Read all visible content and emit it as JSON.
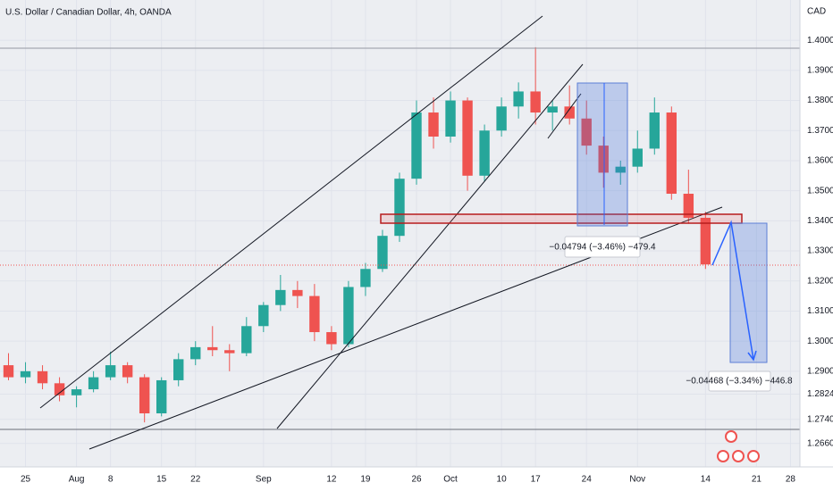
{
  "chart_data": {
    "type": "candlestick",
    "title": "U.S. Dollar / Canadian Dollar, 4h, OANDA",
    "currency": "CAD",
    "up_color": "#26a69a",
    "down_color": "#ef5350",
    "grid": true,
    "categories": [
      null,
      "25",
      null,
      null,
      "Aug",
      null,
      "8",
      null,
      null,
      "15",
      null,
      "22",
      null,
      null,
      null,
      "Sep",
      null,
      null,
      null,
      "12",
      null,
      "19",
      null,
      null,
      "26",
      null,
      "Oct",
      null,
      null,
      "10",
      null,
      "17",
      null,
      null,
      "24",
      null,
      null,
      "Nov",
      null,
      null,
      null,
      "14",
      null,
      null,
      "21",
      null,
      "28",
      null,
      null
    ],
    "open": [
      1.292,
      1.288,
      1.29,
      1.286,
      1.282,
      1.284,
      1.288,
      1.292,
      1.288,
      1.276,
      1.287,
      1.294,
      1.298,
      1.297,
      1.296,
      1.305,
      1.312,
      1.317,
      1.315,
      1.303,
      1.299,
      1.318,
      1.324,
      1.335,
      1.354,
      1.376,
      1.368,
      1.38,
      1.355,
      1.37,
      1.378,
      1.383,
      1.376,
      1.378,
      1.374,
      1.365,
      1.356,
      1.358,
      1.364,
      1.376,
      1.349,
      1.341,
      null,
      null,
      null,
      null,
      null,
      null,
      null
    ],
    "high": [
      1.296,
      1.293,
      1.292,
      1.288,
      1.285,
      1.29,
      1.2965,
      1.293,
      1.289,
      1.288,
      1.296,
      1.3,
      1.305,
      1.299,
      1.308,
      1.313,
      1.322,
      1.32,
      1.319,
      1.305,
      1.32,
      1.326,
      1.337,
      1.356,
      1.38,
      1.381,
      1.383,
      1.381,
      1.372,
      1.381,
      1.386,
      1.3977,
      1.38,
      1.385,
      1.38,
      1.368,
      1.36,
      1.37,
      1.381,
      1.378,
      1.357,
      1.343,
      null,
      null,
      null,
      null,
      null,
      null,
      null
    ],
    "low": [
      1.287,
      1.286,
      1.284,
      1.28,
      1.278,
      1.283,
      1.287,
      1.286,
      1.273,
      1.275,
      1.285,
      1.292,
      1.295,
      1.29,
      1.295,
      1.303,
      1.31,
      1.311,
      1.3,
      1.297,
      1.298,
      1.315,
      1.323,
      1.333,
      1.352,
      1.364,
      1.366,
      1.35,
      1.353,
      1.368,
      1.374,
      1.372,
      1.37,
      1.372,
      1.362,
      1.351,
      1.352,
      1.356,
      1.362,
      1.347,
      1.339,
      1.324,
      null,
      null,
      null,
      null,
      null,
      null,
      null
    ],
    "close": [
      1.288,
      1.29,
      1.286,
      1.282,
      1.284,
      1.288,
      1.292,
      1.288,
      1.276,
      1.287,
      1.294,
      1.298,
      1.297,
      1.296,
      1.305,
      1.312,
      1.317,
      1.315,
      1.303,
      1.299,
      1.318,
      1.324,
      1.335,
      1.354,
      1.376,
      1.368,
      1.38,
      1.355,
      1.37,
      1.378,
      1.383,
      1.376,
      1.378,
      1.374,
      1.365,
      1.356,
      1.358,
      1.364,
      1.376,
      1.349,
      1.341,
      1.3255,
      null,
      null,
      null,
      null,
      null,
      null,
      null
    ],
    "ylim": [
      1.2582,
      1.4134
    ],
    "yticks": [
      {
        "value": 1.4,
        "label": "1.40000"
      },
      {
        "value": 1.39,
        "label": "1.39000"
      },
      {
        "value": 1.38,
        "label": "1.38000"
      },
      {
        "value": 1.37,
        "label": "1.37000"
      },
      {
        "value": 1.36,
        "label": "1.36000"
      },
      {
        "value": 1.35,
        "label": "1.35000"
      },
      {
        "value": 1.34,
        "label": "1.34000"
      },
      {
        "value": 1.33,
        "label": "1.33000"
      },
      {
        "value": 1.32,
        "label": "1.32000"
      },
      {
        "value": 1.31,
        "label": "1.31000"
      },
      {
        "value": 1.3,
        "label": "1.30000"
      },
      {
        "value": 1.29,
        "label": "1.29000"
      },
      {
        "value": 1.2824,
        "label": "1.28240"
      },
      {
        "value": 1.274,
        "label": "1.27400"
      },
      {
        "value": 1.266,
        "label": "1.26600"
      }
    ],
    "annotations": [
      "−0.04794 (−3.46%) −479.4",
      "−0.04468 (−3.34%) −446.8"
    ]
  }
}
